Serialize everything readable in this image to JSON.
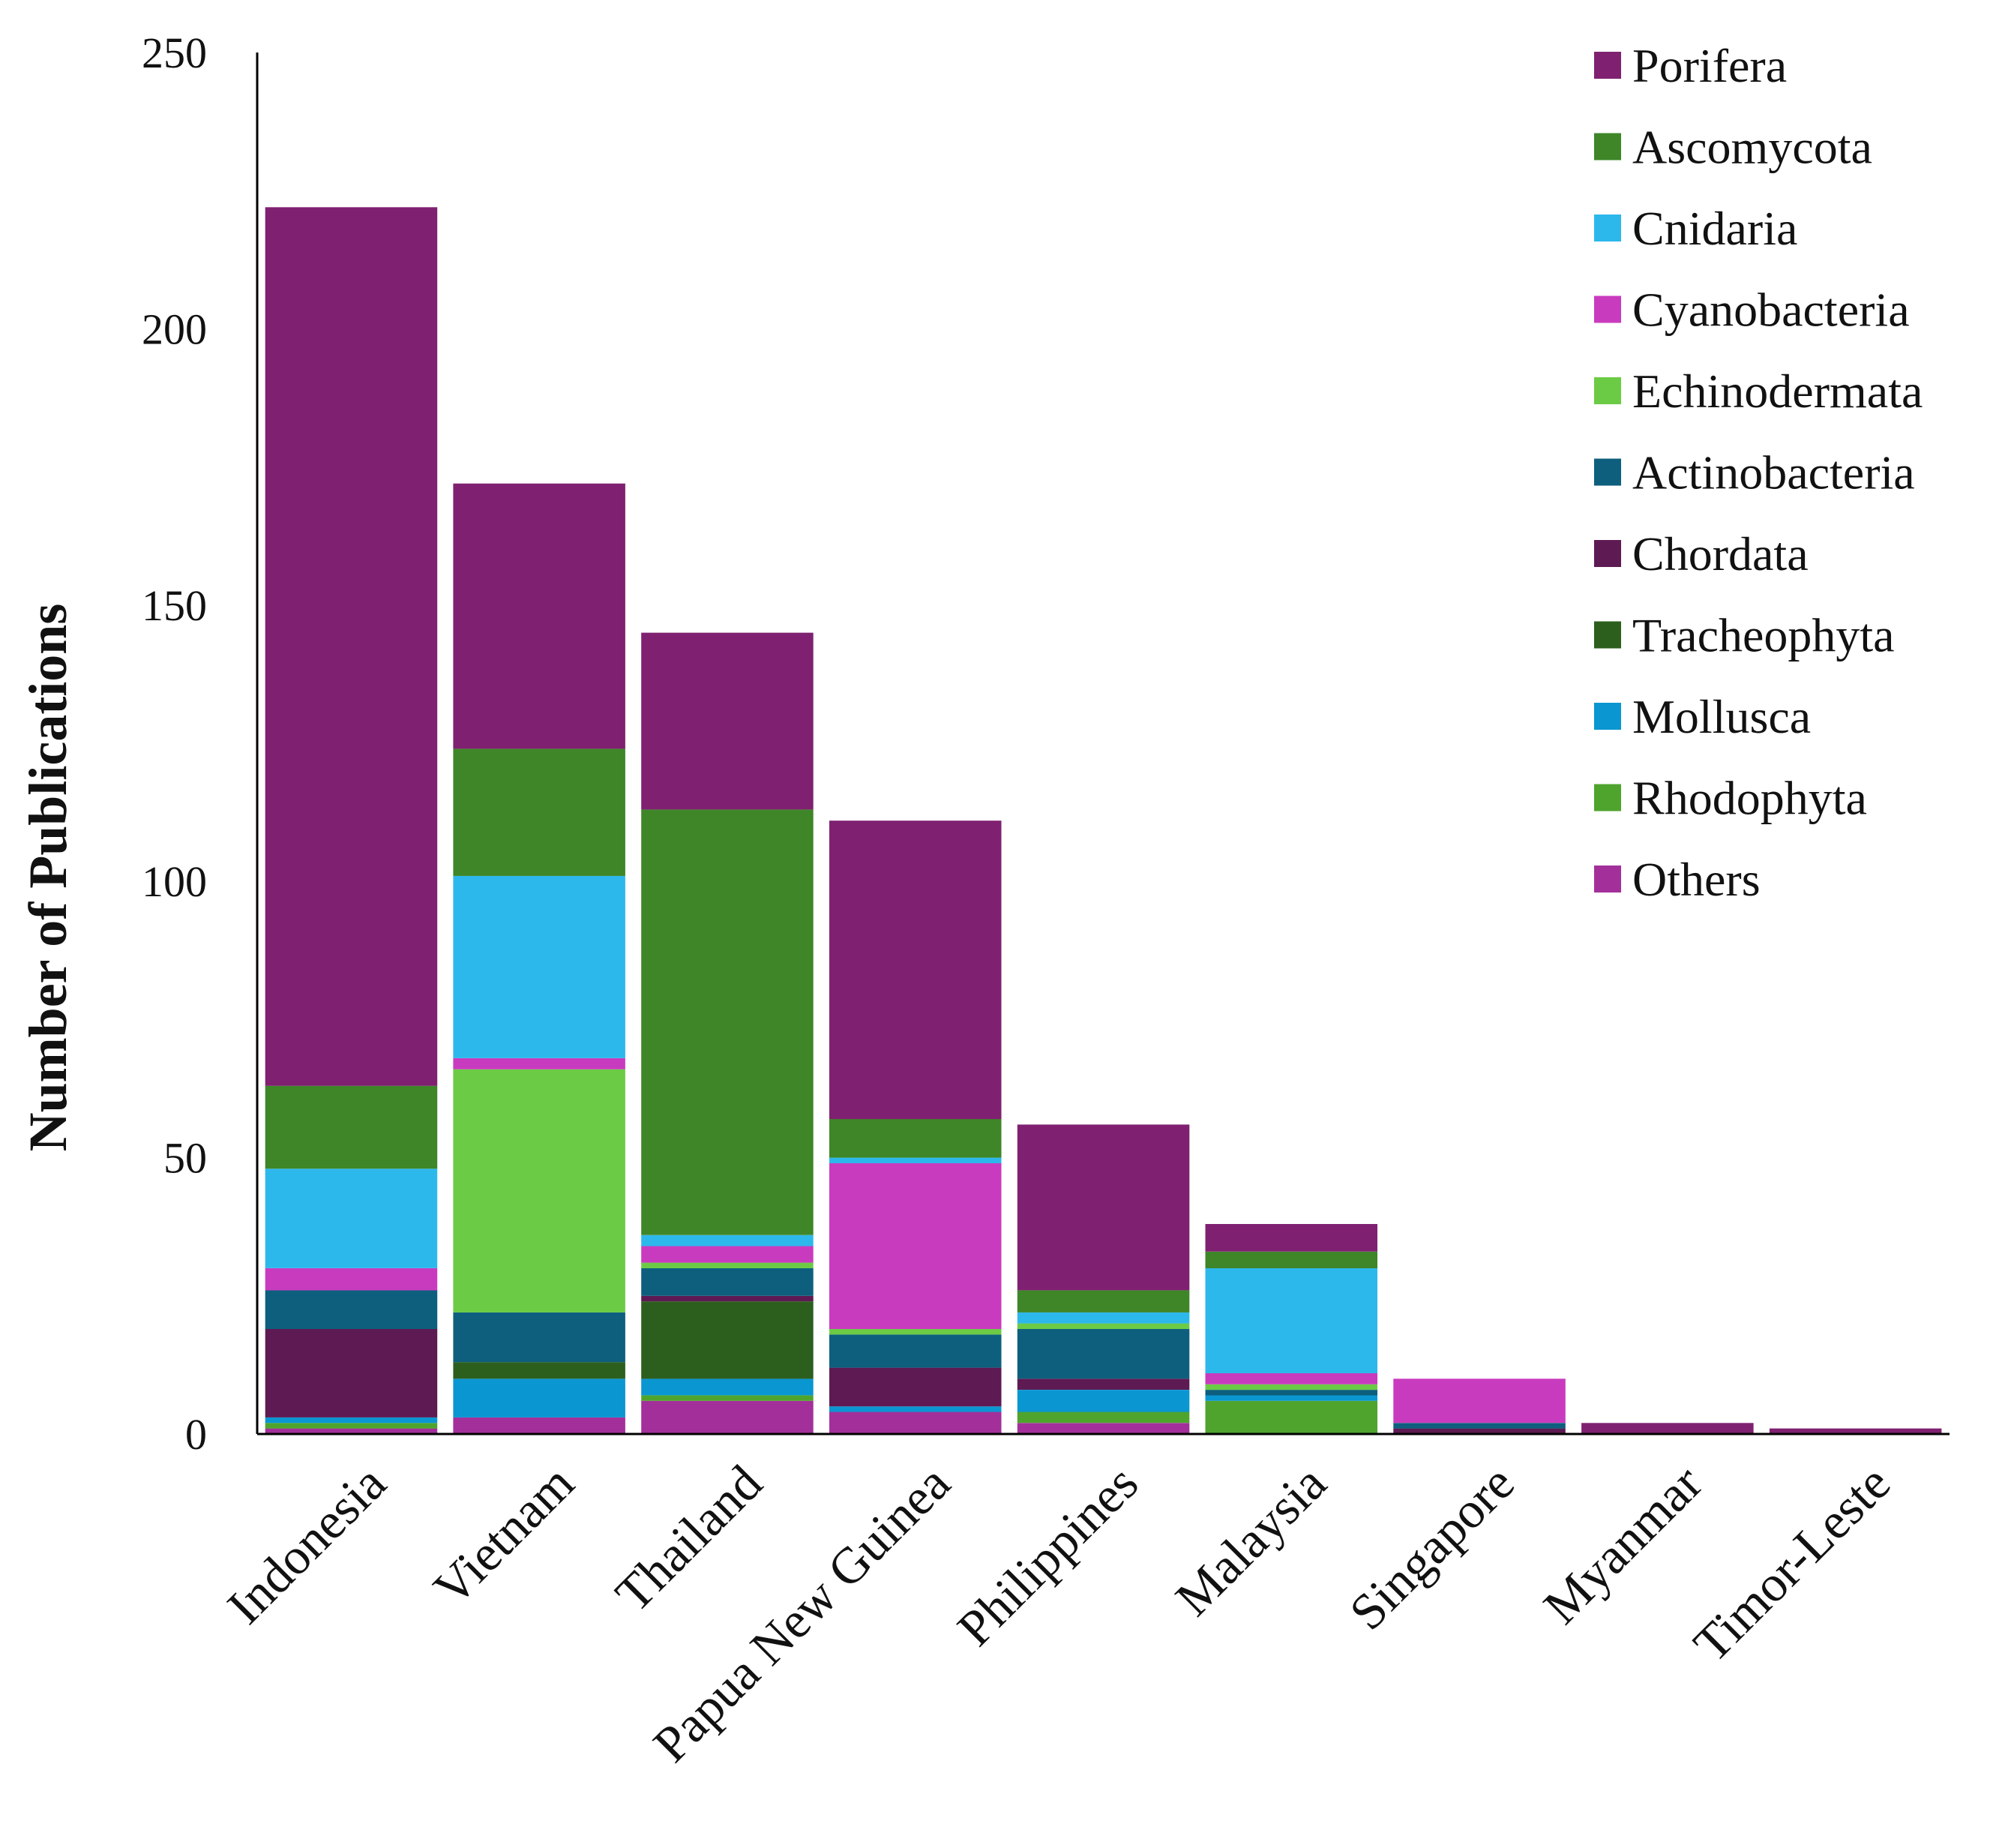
{
  "chart_data": {
    "type": "bar",
    "stacked": true,
    "ylabel": "Number of Publications",
    "xlabel": "",
    "ylim": [
      0,
      250
    ],
    "yticks": [
      0,
      50,
      100,
      150,
      200,
      250
    ],
    "grid": false,
    "legend_position": "top-right",
    "categories": [
      "Indonesia",
      "Vietnam",
      "Thailand",
      "Papua New Guinea",
      "Philippines",
      "Malaysia",
      "Singapore",
      "Myanmar",
      "Timor-Leste"
    ],
    "series": [
      {
        "name": "Others",
        "color": "#A3309A",
        "values": [
          1,
          3,
          6,
          4,
          2,
          0,
          0,
          0,
          0
        ]
      },
      {
        "name": "Rhodophyta",
        "color": "#4FA42E",
        "values": [
          1,
          0,
          1,
          0,
          2,
          6,
          0,
          0,
          0
        ]
      },
      {
        "name": "Mollusca",
        "color": "#0A96D1",
        "values": [
          1,
          7,
          3,
          1,
          4,
          1,
          0,
          0,
          0
        ]
      },
      {
        "name": "Tracheophyta",
        "color": "#2C5F1E",
        "values": [
          0,
          3,
          14,
          0,
          0,
          0,
          0,
          0,
          0
        ]
      },
      {
        "name": "Chordata",
        "color": "#5E1A52",
        "values": [
          16,
          0,
          1,
          7,
          2,
          0,
          1,
          0,
          0
        ]
      },
      {
        "name": "Actinobacteria",
        "color": "#0E5F7D",
        "values": [
          7,
          9,
          5,
          6,
          9,
          1,
          1,
          0,
          0
        ]
      },
      {
        "name": "Echinodermata",
        "color": "#6CCB45",
        "values": [
          0,
          44,
          1,
          1,
          1,
          1,
          0,
          0,
          0
        ]
      },
      {
        "name": "Cyanobacteria",
        "color": "#C93BBE",
        "values": [
          4,
          2,
          3,
          30,
          0,
          2,
          8,
          0,
          0
        ]
      },
      {
        "name": "Cnidaria",
        "color": "#2DB8EC",
        "values": [
          18,
          33,
          2,
          1,
          2,
          19,
          0,
          0,
          0
        ]
      },
      {
        "name": "Ascomycota",
        "color": "#3E8628",
        "values": [
          15,
          23,
          77,
          7,
          4,
          3,
          0,
          0,
          0
        ]
      },
      {
        "name": "Porifera",
        "color": "#7F2170",
        "values": [
          159,
          48,
          32,
          54,
          30,
          5,
          0,
          2,
          1
        ]
      }
    ],
    "legend_order": [
      "Porifera",
      "Ascomycota",
      "Cnidaria",
      "Cyanobacteria",
      "Echinodermata",
      "Actinobacteria",
      "Chordata",
      "Tracheophyta",
      "Mollusca",
      "Rhodophyta",
      "Others"
    ]
  }
}
